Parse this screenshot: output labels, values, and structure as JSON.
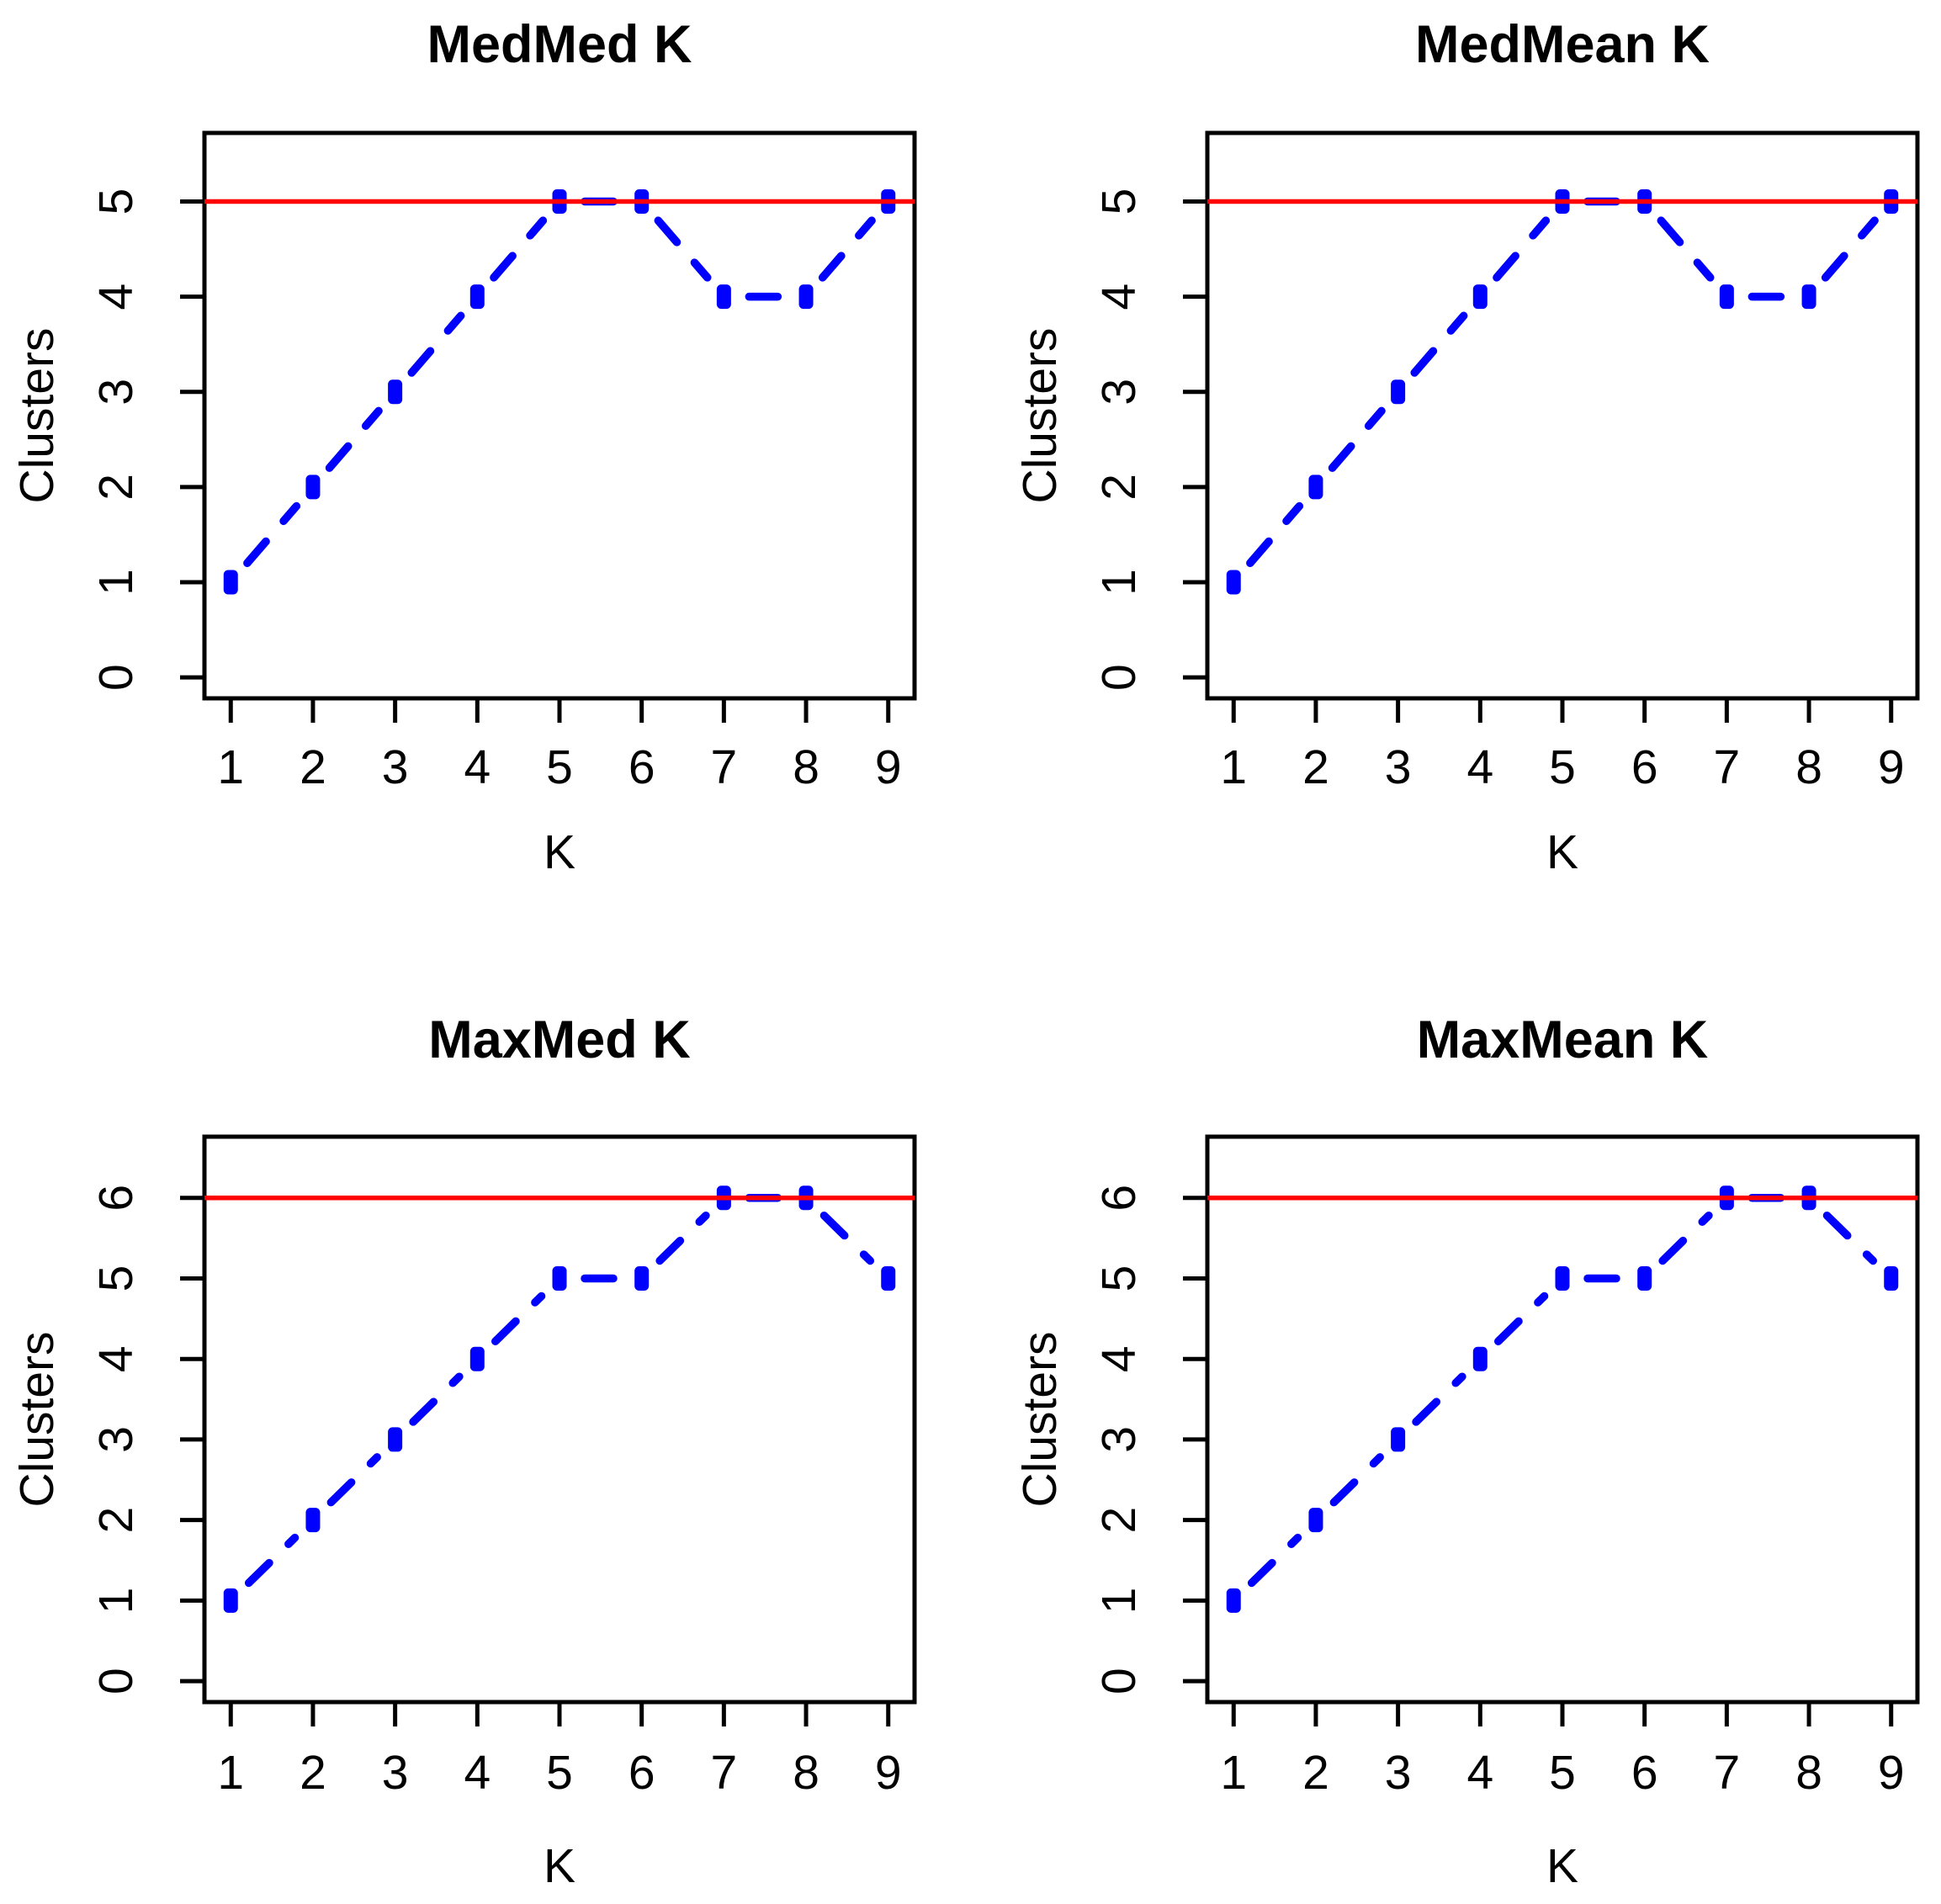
{
  "figure": {
    "background": "#ffffff",
    "text_color": "#000000",
    "axis_color": "#000000"
  },
  "chart_data": [
    {
      "type": "line",
      "title": "MedMed K",
      "xlabel": "K",
      "ylabel": "Clusters",
      "x": [
        1,
        2,
        3,
        4,
        5,
        6,
        7,
        8,
        9
      ],
      "y": [
        1,
        2,
        3,
        4,
        5,
        5,
        4,
        4,
        5
      ],
      "xticks": [
        1,
        2,
        3,
        4,
        5,
        6,
        7,
        8,
        9
      ],
      "yticks": [
        0,
        1,
        2,
        3,
        4,
        5
      ],
      "xlim": [
        0.68,
        9.32
      ],
      "ylim": [
        -0.22,
        5.72
      ],
      "hline": {
        "y": 5,
        "color": "#ff0000"
      },
      "line_color": "#0000ff",
      "marker_color": "#0000ff",
      "line_style": "dashed",
      "marker": "filled-square",
      "grid": false,
      "legend": null
    },
    {
      "type": "line",
      "title": "MedMean K",
      "xlabel": "K",
      "ylabel": "Clusters",
      "x": [
        1,
        2,
        3,
        4,
        5,
        6,
        7,
        8,
        9
      ],
      "y": [
        1,
        2,
        3,
        4,
        5,
        5,
        4,
        4,
        5
      ],
      "xticks": [
        1,
        2,
        3,
        4,
        5,
        6,
        7,
        8,
        9
      ],
      "yticks": [
        0,
        1,
        2,
        3,
        4,
        5
      ],
      "xlim": [
        0.68,
        9.32
      ],
      "ylim": [
        -0.22,
        5.72
      ],
      "hline": {
        "y": 5,
        "color": "#ff0000"
      },
      "line_color": "#0000ff",
      "marker_color": "#0000ff",
      "line_style": "dashed",
      "marker": "filled-square",
      "grid": false,
      "legend": null
    },
    {
      "type": "line",
      "title": "MaxMed K",
      "xlabel": "K",
      "ylabel": "Clusters",
      "x": [
        1,
        2,
        3,
        4,
        5,
        6,
        7,
        8,
        9
      ],
      "y": [
        1,
        2,
        3,
        4,
        5,
        5,
        6,
        6,
        5
      ],
      "xticks": [
        1,
        2,
        3,
        4,
        5,
        6,
        7,
        8,
        9
      ],
      "yticks": [
        0,
        1,
        2,
        3,
        4,
        5,
        6
      ],
      "xlim": [
        0.68,
        9.32
      ],
      "ylim": [
        -0.26,
        6.76
      ],
      "hline": {
        "y": 6,
        "color": "#ff0000"
      },
      "line_color": "#0000ff",
      "marker_color": "#0000ff",
      "line_style": "dashed",
      "marker": "filled-square",
      "grid": false,
      "legend": null
    },
    {
      "type": "line",
      "title": "MaxMean K",
      "xlabel": "K",
      "ylabel": "Clusters",
      "x": [
        1,
        2,
        3,
        4,
        5,
        6,
        7,
        8,
        9
      ],
      "y": [
        1,
        2,
        3,
        4,
        5,
        5,
        6,
        6,
        5
      ],
      "xticks": [
        1,
        2,
        3,
        4,
        5,
        6,
        7,
        8,
        9
      ],
      "yticks": [
        0,
        1,
        2,
        3,
        4,
        5,
        6
      ],
      "xlim": [
        0.68,
        9.32
      ],
      "ylim": [
        -0.26,
        6.76
      ],
      "hline": {
        "y": 6,
        "color": "#ff0000"
      },
      "line_color": "#0000ff",
      "marker_color": "#0000ff",
      "line_style": "dashed",
      "marker": "filled-square",
      "grid": false,
      "legend": null
    }
  ]
}
